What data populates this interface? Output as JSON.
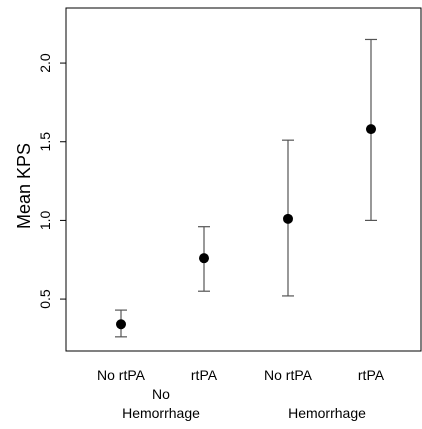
{
  "chart_data": {
    "type": "scatter",
    "title": "",
    "xlabel": "",
    "ylabel": "Mean KPS",
    "ylim": [
      0.17,
      2.35
    ],
    "yticks": [
      0.5,
      1.0,
      1.5,
      2.0
    ],
    "ytick_labels": [
      "0.5",
      "1.0",
      "1.5",
      "2.0"
    ],
    "categories": [
      "No rtPA",
      "rtPA",
      "No rtPA",
      "rtPA"
    ],
    "groups": [
      {
        "label_line1": "No",
        "label_line2": "Hemorrhage"
      },
      {
        "label_line1": "",
        "label_line2": "Hemorrhage"
      }
    ],
    "points": [
      {
        "mean": 0.34,
        "lower": 0.26,
        "upper": 0.43
      },
      {
        "mean": 0.76,
        "lower": 0.55,
        "upper": 0.96
      },
      {
        "mean": 1.01,
        "lower": 0.52,
        "upper": 1.51
      },
      {
        "mean": 1.58,
        "lower": 1.0,
        "upper": 2.15
      }
    ],
    "grid": false,
    "colors": {
      "point": "#000000",
      "errorbar": "#555555",
      "axis": "#000000"
    }
  }
}
